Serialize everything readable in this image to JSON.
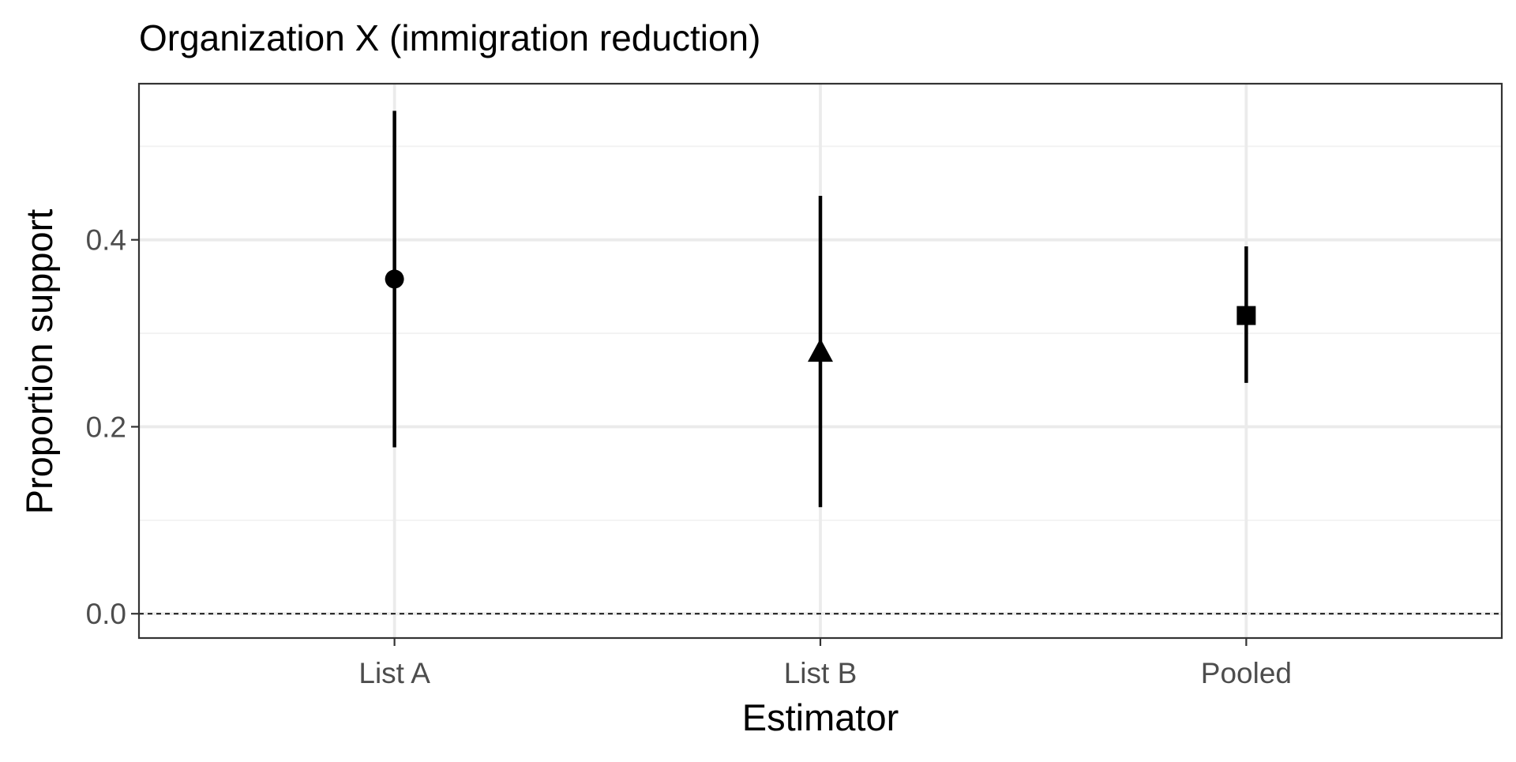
{
  "chart_data": {
    "type": "pointrange",
    "title": "Organization X (immigration reduction)",
    "xlabel": "Estimator",
    "ylabel": "Proportion support",
    "categories": [
      "List A",
      "List B",
      "Pooled"
    ],
    "estimates": [
      0.358,
      0.281,
      0.319
    ],
    "ci_lower": [
      0.178,
      0.114,
      0.247
    ],
    "ci_upper": [
      0.538,
      0.447,
      0.393
    ],
    "markers": [
      "circle",
      "triangle",
      "square"
    ],
    "yticks": [
      0.0,
      0.2,
      0.4
    ],
    "ytick_labels": [
      "0.0",
      "0.2",
      "0.4"
    ],
    "ylim": [
      -0.026,
      0.567
    ],
    "reference_line": {
      "y": 0,
      "style": "dashed"
    },
    "grid": true,
    "legend": "none",
    "colors": {
      "points": "#000000",
      "grid_major": "#ebebeb",
      "grid_minor": "#f2f2f2",
      "panel_border": "#333333",
      "tick_text": "#4d4d4d"
    }
  }
}
